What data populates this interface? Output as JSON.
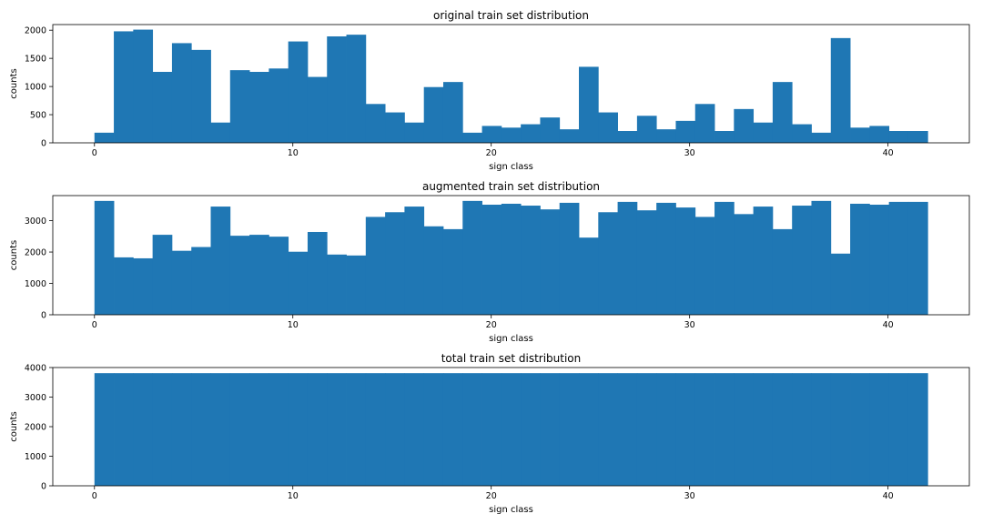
{
  "chart_data": [
    {
      "type": "bar",
      "title": "original train set distribution",
      "xlabel": "sign class",
      "ylabel": "counts",
      "xlim": [
        -2.1,
        44.1
      ],
      "ylim": [
        0,
        2100
      ],
      "xticks": [
        0,
        10,
        20,
        30,
        40
      ],
      "yticks": [
        0,
        500,
        1000,
        1500,
        2000
      ],
      "bin_edges": [
        0,
        0.9767,
        1.9535,
        2.9302,
        3.907,
        4.8837,
        5.8605,
        6.8372,
        7.814,
        8.7907,
        9.7674,
        10.7442,
        11.7209,
        12.6977,
        13.6744,
        14.6512,
        15.6279,
        16.6047,
        17.5814,
        18.5581,
        19.5349,
        20.5116,
        21.4884,
        22.4651,
        23.4419,
        24.4186,
        25.3953,
        26.3721,
        27.3488,
        28.3256,
        29.3023,
        30.2791,
        31.2558,
        32.2326,
        33.2093,
        34.186,
        35.1628,
        36.1395,
        37.1163,
        38.093,
        39.0698,
        40.0465,
        41.0233,
        42
      ],
      "values": [
        180,
        1980,
        2010,
        1260,
        1770,
        1650,
        360,
        1290,
        1260,
        1320,
        1800,
        1170,
        1890,
        1920,
        690,
        540,
        360,
        990,
        1080,
        180,
        300,
        270,
        330,
        450,
        240,
        1350,
        540,
        210,
        480,
        240,
        390,
        690,
        210,
        600,
        360,
        1080,
        330,
        180,
        1860,
        270,
        300,
        210,
        210
      ]
    },
    {
      "type": "bar",
      "title": "augmented train set distribution",
      "xlabel": "sign class",
      "ylabel": "counts",
      "xlim": [
        -2.1,
        44.1
      ],
      "ylim": [
        0,
        3800
      ],
      "xticks": [
        0,
        10,
        20,
        30,
        40
      ],
      "yticks": [
        0,
        1000,
        2000,
        3000
      ],
      "bin_edges": [
        0,
        0.9767,
        1.9535,
        2.9302,
        3.907,
        4.8837,
        5.8605,
        6.8372,
        7.814,
        8.7907,
        9.7674,
        10.7442,
        11.7209,
        12.6977,
        13.6744,
        14.6512,
        15.6279,
        16.6047,
        17.5814,
        18.5581,
        19.5349,
        20.5116,
        21.4884,
        22.4651,
        23.4419,
        24.4186,
        25.3953,
        26.3721,
        27.3488,
        28.3256,
        29.3023,
        30.2791,
        31.2558,
        32.2326,
        33.2093,
        34.186,
        35.1628,
        36.1395,
        37.1163,
        38.093,
        39.0698,
        40.0465,
        41.0233,
        42
      ],
      "values": [
        3630,
        1830,
        1800,
        2550,
        2040,
        2160,
        3450,
        2520,
        2550,
        2490,
        2010,
        2640,
        1920,
        1890,
        3120,
        3270,
        3450,
        2820,
        2730,
        3630,
        3510,
        3540,
        3480,
        3360,
        3570,
        2460,
        3270,
        3600,
        3330,
        3570,
        3420,
        3120,
        3600,
        3210,
        3450,
        2730,
        3480,
        3630,
        1950,
        3540,
        3510,
        3600,
        3600
      ]
    },
    {
      "type": "bar",
      "title": "total train set distribution",
      "xlabel": "sign class",
      "ylabel": "counts",
      "xlim": [
        -2.1,
        44.1
      ],
      "ylim": [
        0,
        4000
      ],
      "xticks": [
        0,
        10,
        20,
        30,
        40
      ],
      "yticks": [
        0,
        1000,
        2000,
        3000,
        4000
      ],
      "bin_edges": [
        0,
        0.9767,
        1.9535,
        2.9302,
        3.907,
        4.8837,
        5.8605,
        6.8372,
        7.814,
        8.7907,
        9.7674,
        10.7442,
        11.7209,
        12.6977,
        13.6744,
        14.6512,
        15.6279,
        16.6047,
        17.5814,
        18.5581,
        19.5349,
        20.5116,
        21.4884,
        22.4651,
        23.4419,
        24.4186,
        25.3953,
        26.3721,
        27.3488,
        28.3256,
        29.3023,
        30.2791,
        31.2558,
        32.2326,
        33.2093,
        34.186,
        35.1628,
        36.1395,
        37.1163,
        38.093,
        39.0698,
        40.0465,
        41.0233,
        42
      ],
      "values": [
        3810,
        3810,
        3810,
        3810,
        3810,
        3810,
        3810,
        3810,
        3810,
        3810,
        3810,
        3810,
        3810,
        3810,
        3810,
        3810,
        3810,
        3810,
        3810,
        3810,
        3810,
        3810,
        3810,
        3810,
        3810,
        3810,
        3810,
        3810,
        3810,
        3810,
        3810,
        3810,
        3810,
        3810,
        3810,
        3810,
        3810,
        3810,
        3810,
        3810,
        3810,
        3810,
        3810
      ]
    }
  ],
  "style": {
    "bar_color": "#1f77b4",
    "axis_color": "#000000",
    "background": "#ffffff"
  }
}
